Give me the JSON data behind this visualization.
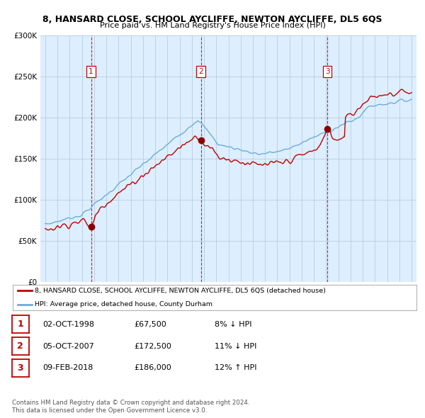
{
  "title": "8, HANSARD CLOSE, SCHOOL AYCLIFFE, NEWTON AYCLIFFE, DL5 6QS",
  "subtitle": "Price paid vs. HM Land Registry's House Price Index (HPI)",
  "legend_line1": "8, HANSARD CLOSE, SCHOOL AYCLIFFE, NEWTON AYCLIFFE, DL5 6QS (detached house)",
  "legend_line2": "HPI: Average price, detached house, County Durham",
  "footer1": "Contains HM Land Registry data © Crown copyright and database right 2024.",
  "footer2": "This data is licensed under the Open Government Licence v3.0.",
  "sales": [
    {
      "num": 1,
      "date": "02-OCT-1998",
      "price": "£67,500",
      "hpi": "8% ↓ HPI",
      "year": 1998.75
    },
    {
      "num": 2,
      "date": "05-OCT-2007",
      "price": "£172,500",
      "hpi": "11% ↓ HPI",
      "year": 2007.75
    },
    {
      "num": 3,
      "date": "09-FEB-2018",
      "price": "£186,000",
      "hpi": "12% ↑ HPI",
      "year": 2018.1
    }
  ],
  "sale_prices": [
    67500,
    172500,
    186000
  ],
  "hpi_color": "#6baed6",
  "price_color": "#c00000",
  "dashed_color": "#c00000",
  "marker_color": "#8b0000",
  "chart_bg": "#ddeeff",
  "background_color": "#ffffff",
  "grid_color": "#bbccdd",
  "ylim": [
    0,
    300000
  ],
  "xlim": [
    1994.6,
    2025.4
  ],
  "num_box_color": "#c00000"
}
